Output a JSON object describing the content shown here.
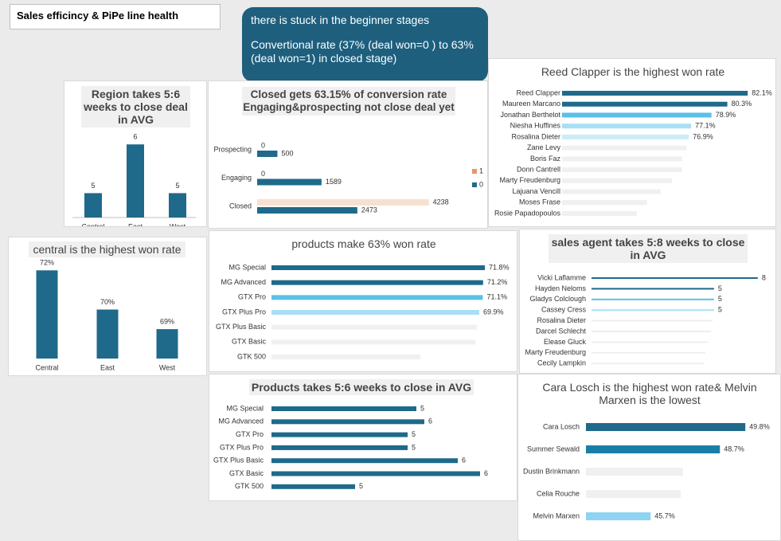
{
  "header": {
    "title": "Sales efficincy & PiPe line health",
    "callout": [
      "there is stuck in the beginner stages",
      "Convertional rate (37% (deal won=0 ) to 63% (deal won=1) in closed stage)"
    ]
  },
  "chart_data": [
    {
      "type": "bar",
      "title": "Region takes 5:6 weeks to close deal in AVG",
      "categories": [
        "Central",
        "East",
        "West"
      ],
      "values": [
        5,
        6,
        5
      ],
      "color": "#1f6a8a",
      "ylim": [
        4.5,
        6.2
      ]
    },
    {
      "type": "bar",
      "title": "central is the highest won rate",
      "categories": [
        "Central",
        "East",
        "West"
      ],
      "values": [
        72,
        70,
        69
      ],
      "value_labels": [
        "72%",
        "70%",
        "69%"
      ],
      "color": "#1f6a8a",
      "ylim": [
        67.5,
        72.5
      ]
    },
    {
      "type": "hbar",
      "title": "Closed gets 63.15% of conversion rate Engaging&prospecting not close deal yet",
      "categories": [
        "Prospecting",
        "Engaging",
        "Closed"
      ],
      "series": [
        {
          "name": "1",
          "color": "#f8e0d0",
          "values": [
            0,
            0,
            4238
          ]
        },
        {
          "name": "0",
          "color": "#1f6a8a",
          "values": [
            500,
            1589,
            2473
          ]
        }
      ],
      "xlim": [
        0,
        4500
      ],
      "legend": "right"
    },
    {
      "type": "hbar",
      "title": "Reed Clapper is the highest won rate",
      "categories": [
        "Reed Clapper",
        "Maureen Marcano",
        "Jonathan Berthelot",
        "Niesha Huffines",
        "Rosalina Dieter",
        "Zane Levy",
        "Boris Faz",
        "Donn Cantrell",
        "Marty Freudenburg",
        "Lajuana Vencill",
        "Moses Frase",
        "Rosie Papadopoulos"
      ],
      "values": [
        82.1,
        80.3,
        78.9,
        77.1,
        76.9,
        76.7,
        76.3,
        76.3,
        75.4,
        74.4,
        73.2,
        72.3
      ],
      "value_labels": [
        "82.1%",
        "80.3%",
        "78.9%",
        "77.1%",
        "76.9%",
        null,
        null,
        null,
        null,
        null,
        null,
        null
      ],
      "colors": [
        "#1f6a8a",
        "#1f6a8a",
        "#5bc0e8",
        "#a8dff5",
        "#c9ecf9",
        "#f0f0f0",
        "#f0f0f0",
        "#f0f0f0",
        "#f0f0f0",
        "#f0f0f0",
        "#f0f0f0",
        "#f0f0f0"
      ],
      "xlim": [
        65.7,
        83
      ]
    },
    {
      "type": "hbar",
      "title": "products make 63% won rate",
      "categories": [
        "MG Special",
        "MG Advanced",
        "GTX Pro",
        "GTX Plus Pro",
        "GTX Plus Basic",
        "GTX Basic",
        "GTK 500"
      ],
      "values": [
        71.8,
        71.2,
        71.1,
        69.9,
        69.1,
        68.6,
        50.1
      ],
      "value_labels": [
        "71.8%",
        "71.2%",
        "71.1%",
        "69.9%",
        null,
        null,
        null
      ],
      "colors": [
        "#1f6a8a",
        "#1f6a8a",
        "#5bc0e8",
        "#a8dff5",
        "#f0f0f0",
        "#f0f0f0",
        "#f0f0f0"
      ],
      "xlim": [
        0,
        75
      ]
    },
    {
      "type": "hbar",
      "title": "sales agent takes 5:8 weeks to close in AVG",
      "categories": [
        "Vicki Laflamme",
        "Hayden Neloms",
        "Gladys Colclough",
        "Cassey Cress",
        "Rosalina Dieter",
        "Darcel Schlecht",
        "Elease Gluck",
        "Marty Freudenburg",
        "Cecily Lampkin"
      ],
      "values": [
        8,
        5,
        5,
        5,
        4.9,
        4.8,
        4.6,
        4.4,
        4.3
      ],
      "value_labels": [
        "8",
        "5",
        "5",
        "5",
        null,
        null,
        null,
        null,
        null
      ],
      "colors": [
        "#1f6a8a",
        "#1f6a8a",
        "#5bc0e8",
        "#a8dff5",
        "#eeeeee",
        "#eeeeee",
        "#eeeeee",
        "#eeeeee",
        "#eeeeee"
      ],
      "xlim": [
        -3.4,
        8.5
      ]
    },
    {
      "type": "hbar",
      "title": "Products takes 5:6 weeks to close in AVG",
      "categories": [
        "MG Special",
        "MG Advanced",
        "GTX Pro",
        "GTX Plus Pro",
        "GTX Plus Basic",
        "GTX Basic",
        "GTK 500"
      ],
      "values": [
        5.42,
        5.52,
        5.31,
        5.31,
        5.94,
        6.22,
        4.65
      ],
      "value_labels": [
        "5",
        "6",
        "5",
        "5",
        "6",
        "6",
        "5"
      ],
      "color": "#1f6a8a",
      "xlim": [
        3.6,
        6.6
      ]
    },
    {
      "type": "hbar",
      "title": "Cara Losch is the highest won rate& Melvin Marxen is the lowest",
      "categories": [
        "Cara Losch",
        "Summer Sewald",
        "Dustin Brinkmann",
        "Celia Rouche",
        "Melvin Marxen"
      ],
      "values": [
        49.8,
        48.7,
        47.1,
        47.0,
        45.7
      ],
      "value_labels": [
        "49.8%",
        "48.7%",
        null,
        null,
        "45.7%"
      ],
      "colors": [
        "#1f6a8a",
        "#1a7fa5",
        "#f0f0f0",
        "#f0f0f0",
        "#8fd3f2"
      ],
      "xlim": [
        42.9,
        51
      ]
    }
  ]
}
